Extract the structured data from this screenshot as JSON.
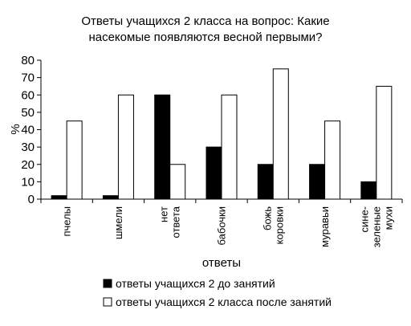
{
  "chart_data": {
    "type": "bar",
    "title_lines": [
      "Ответы учащихся 2 класса на вопрос: Какие",
      "насекомые появляются весной первыми?"
    ],
    "ylabel": "%",
    "xlabel": "ответы",
    "ylim": [
      0,
      80
    ],
    "yticks": [
      0,
      10,
      20,
      30,
      40,
      50,
      60,
      70,
      80
    ],
    "grid": false,
    "legend_position": "bottom",
    "categories": [
      [
        "пчелы"
      ],
      [
        "шмели"
      ],
      [
        "нет",
        "ответа"
      ],
      [
        "бабочки"
      ],
      [
        "божь",
        "коровки"
      ],
      [
        "муравьи"
      ],
      [
        "сине-",
        "зеленые",
        "мухи"
      ]
    ],
    "series": [
      {
        "name": "ответы учащихся 2 до занятий",
        "color": "#000000",
        "values": [
          2,
          2,
          60,
          30,
          20,
          20,
          10
        ]
      },
      {
        "name": "ответы учащихся 2 класса после занятий",
        "color": "#ffffff",
        "values": [
          45,
          60,
          20,
          60,
          75,
          45,
          65
        ]
      }
    ]
  }
}
